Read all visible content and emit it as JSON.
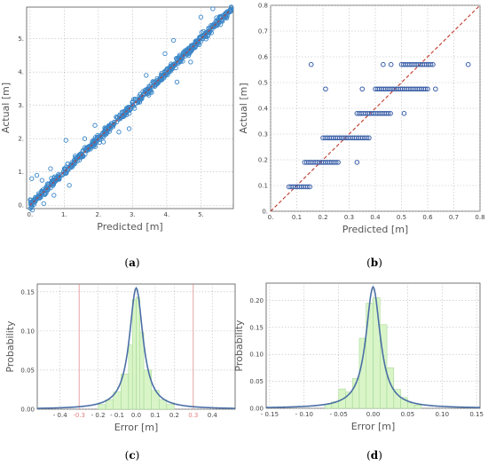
{
  "chart_data": [
    {
      "panel": "a",
      "type": "scatter",
      "caption": "(a)",
      "xlabel": "Predicted [m]",
      "ylabel": "Actual  [m]",
      "xlim": [
        -0.1,
        5.95
      ],
      "ylim": [
        -0.1,
        5.95
      ],
      "xticks": [
        0,
        1,
        2,
        3,
        4,
        5
      ],
      "xtick_labels": [
        "0.",
        "1.",
        "2.",
        "3.",
        "4.",
        "5."
      ],
      "yticks": [
        0,
        1,
        2,
        3,
        4,
        5
      ],
      "ytick_labels": [
        "0.",
        "1.",
        "2.",
        "3.",
        "4.",
        "5."
      ],
      "grid": true,
      "marker_color": "#3a86c8",
      "reference_line_color": "#c0392b",
      "reference_line": [
        [
          0,
          0
        ],
        [
          5.85,
          5.85
        ]
      ],
      "outliers": [
        [
          0.05,
          0.8
        ],
        [
          0.4,
          0.05
        ],
        [
          0.35,
          0.75
        ],
        [
          1.05,
          1.95
        ],
        [
          1.15,
          0.6
        ],
        [
          1.6,
          2.0
        ],
        [
          2.15,
          1.9
        ],
        [
          2.9,
          2.3
        ],
        [
          3.95,
          4.55
        ],
        [
          4.2,
          4.95
        ],
        [
          4.3,
          3.7
        ],
        [
          5.0,
          5.65
        ],
        [
          5.35,
          5.9
        ],
        [
          2.6,
          2.2
        ],
        [
          0.7,
          0.3
        ],
        [
          0.6,
          1.1
        ],
        [
          3.4,
          3.9
        ],
        [
          4.7,
          4.3
        ],
        [
          1.9,
          2.4
        ],
        [
          0.2,
          0.9
        ]
      ]
    },
    {
      "panel": "b",
      "type": "scatter",
      "caption": "(b)",
      "xlabel": "Predicted [m]",
      "ylabel": "Actual  [m]",
      "xlim": [
        0,
        0.8
      ],
      "ylim": [
        0,
        0.8
      ],
      "xticks": [
        0,
        0.1,
        0.2,
        0.3,
        0.4,
        0.5,
        0.6,
        0.7,
        0.8
      ],
      "xtick_labels": [
        "0.",
        "0.1",
        "0.2",
        "0.3",
        "0.4",
        "0.5",
        "0.6",
        "0.7",
        "0.8"
      ],
      "yticks": [
        0,
        0.1,
        0.2,
        0.3,
        0.4,
        0.5,
        0.6,
        0.7,
        0.8
      ],
      "ytick_labels": [
        "0.",
        "0.1",
        "0.2",
        "0.3",
        "0.4",
        "0.5",
        "0.6",
        "0.7",
        "0.8"
      ],
      "grid": true,
      "marker_color": "#3a5fa8",
      "reference_line_color": "#c0392b",
      "levels": [
        {
          "y": 0.095,
          "xmin": 0.07,
          "xmax": 0.155,
          "extra": []
        },
        {
          "y": 0.19,
          "xmin": 0.13,
          "xmax": 0.26,
          "extra": [
            0.33
          ]
        },
        {
          "y": 0.285,
          "xmin": 0.2,
          "xmax": 0.38,
          "extra": []
        },
        {
          "y": 0.38,
          "xmin": 0.33,
          "xmax": 0.46,
          "extra": [
            0.51
          ]
        },
        {
          "y": 0.475,
          "xmin": 0.4,
          "xmax": 0.6,
          "extra": [
            0.21,
            0.35,
            0.63
          ]
        },
        {
          "y": 0.57,
          "xmin": 0.5,
          "xmax": 0.62,
          "extra": [
            0.155,
            0.43,
            0.46,
            0.755
          ]
        }
      ]
    },
    {
      "panel": "c",
      "type": "histogram",
      "caption": "(c)",
      "xlabel": "Error [m]",
      "ylabel": "Probability",
      "xlim": [
        -0.52,
        0.52
      ],
      "ylim": [
        0,
        0.16
      ],
      "xticks": [
        -0.4,
        -0.3,
        -0.2,
        -0.1,
        0,
        0.1,
        0.2,
        0.3,
        0.4
      ],
      "xtick_labels": [
        "- 0.4",
        "-0.3",
        "- 0.2",
        "- 0.1",
        "0.0",
        "0.1",
        "0.2",
        "0.3",
        "0.4"
      ],
      "highlight_ticks": [
        "-0.3",
        "0.3"
      ],
      "highlight_lines": [
        -0.3,
        0.3
      ],
      "highlight_color": "#e08080",
      "yticks": [
        0,
        0.05,
        0.1,
        0.15
      ],
      "ytick_labels": [
        "0.00",
        "0.05",
        "0.10",
        "0.15"
      ],
      "grid": true,
      "bar_color": "#d9f5c8",
      "bar_edge_color": "#9cd38a",
      "curve_color": "#4a6fa5",
      "curve": {
        "peak": 0.155,
        "center": 0.0,
        "gamma": 0.055
      },
      "bins": [
        {
          "x0": -0.2,
          "x1": -0.16,
          "p": 0.006
        },
        {
          "x0": -0.16,
          "x1": -0.12,
          "p": 0.012
        },
        {
          "x0": -0.12,
          "x1": -0.08,
          "p": 0.022
        },
        {
          "x0": -0.08,
          "x1": -0.04,
          "p": 0.045
        },
        {
          "x0": -0.04,
          "x1": -0.02,
          "p": 0.082
        },
        {
          "x0": -0.02,
          "x1": 0.0,
          "p": 0.14
        },
        {
          "x0": 0.0,
          "x1": 0.02,
          "p": 0.143
        },
        {
          "x0": 0.02,
          "x1": 0.04,
          "p": 0.098
        },
        {
          "x0": 0.04,
          "x1": 0.08,
          "p": 0.05
        },
        {
          "x0": 0.08,
          "x1": 0.12,
          "p": 0.024
        },
        {
          "x0": 0.12,
          "x1": 0.16,
          "p": 0.012
        },
        {
          "x0": 0.16,
          "x1": 0.2,
          "p": 0.006
        }
      ]
    },
    {
      "panel": "d",
      "type": "histogram",
      "caption": "(d)",
      "xlabel": "Error [m]",
      "ylabel": "Probability",
      "xlim": [
        -0.155,
        0.155
      ],
      "ylim": [
        0,
        0.232
      ],
      "xticks": [
        -0.15,
        -0.1,
        -0.05,
        0,
        0.05,
        0.1,
        0.15
      ],
      "xtick_labels": [
        "- 0.15",
        "- 0.10",
        "- 0.05",
        "0.00",
        "0.05",
        "0.10",
        "0.15"
      ],
      "yticks": [
        0,
        0.05,
        0.1,
        0.15,
        0.2
      ],
      "ytick_labels": [
        "0.00",
        "0.05",
        "0.10",
        "0.15",
        "0.20"
      ],
      "grid": true,
      "bar_color": "#d9f5c8",
      "bar_edge_color": "#9cd38a",
      "curve_color": "#4a6fa5",
      "curve": {
        "peak": 0.225,
        "center": 0.0,
        "gamma": 0.016
      },
      "bins": [
        {
          "x0": -0.07,
          "x1": -0.06,
          "p": 0.008
        },
        {
          "x0": -0.06,
          "x1": -0.05,
          "p": 0.012
        },
        {
          "x0": -0.05,
          "x1": -0.04,
          "p": 0.036
        },
        {
          "x0": -0.04,
          "x1": -0.03,
          "p": 0.03
        },
        {
          "x0": -0.03,
          "x1": -0.02,
          "p": 0.055
        },
        {
          "x0": -0.02,
          "x1": -0.01,
          "p": 0.13
        },
        {
          "x0": -0.01,
          "x1": 0.0,
          "p": 0.195
        },
        {
          "x0": 0.0,
          "x1": 0.01,
          "p": 0.205
        },
        {
          "x0": 0.01,
          "x1": 0.02,
          "p": 0.155
        },
        {
          "x0": 0.02,
          "x1": 0.03,
          "p": 0.075
        },
        {
          "x0": 0.03,
          "x1": 0.04,
          "p": 0.035
        },
        {
          "x0": 0.04,
          "x1": 0.05,
          "p": 0.02
        },
        {
          "x0": 0.05,
          "x1": 0.06,
          "p": 0.01
        },
        {
          "x0": 0.06,
          "x1": 0.07,
          "p": 0.006
        }
      ]
    }
  ]
}
